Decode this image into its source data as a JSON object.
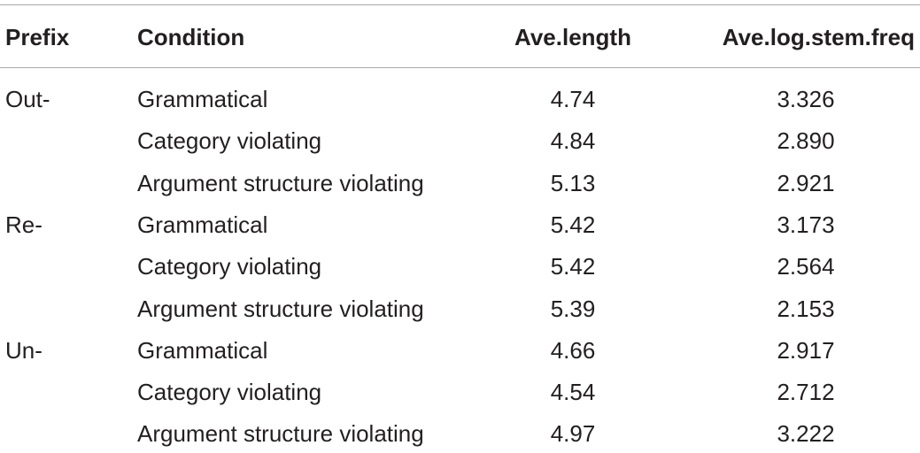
{
  "table": {
    "header": [
      "Prefix",
      "Condition",
      "Ave.length",
      "Ave.log.stem.freq"
    ],
    "groups": [
      {
        "prefix": "Out-",
        "rows": [
          [
            "Grammatical",
            "4.74",
            "3.326"
          ],
          [
            "Category violating",
            "4.84",
            "2.890"
          ],
          [
            "Argument structure violating",
            "5.13",
            "2.921"
          ]
        ]
      },
      {
        "prefix": "Re-",
        "rows": [
          [
            "Grammatical",
            "5.42",
            "3.173"
          ],
          [
            "Category violating",
            "5.42",
            "2.564"
          ],
          [
            "Argument structure violating",
            "5.39",
            "2.153"
          ]
        ]
      },
      {
        "prefix": "Un-",
        "rows": [
          [
            "Grammatical",
            "4.66",
            "2.917"
          ],
          [
            "Category violating",
            "4.54",
            "2.712"
          ],
          [
            "Argument structure violating",
            "4.97",
            "3.222"
          ]
        ]
      }
    ]
  }
}
